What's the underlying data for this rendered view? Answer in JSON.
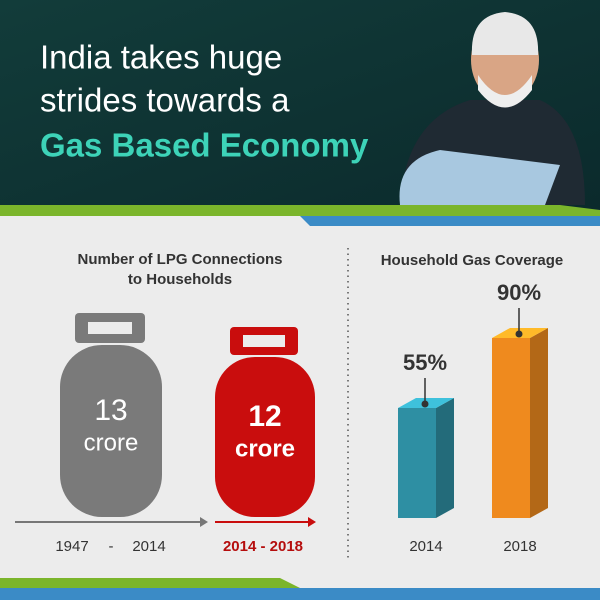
{
  "header": {
    "title_lines": [
      "India takes huge",
      "strides towards a"
    ],
    "highlight": "Gas Based Economy"
  },
  "lpg": {
    "title_lines": [
      "Number of LPG Connections",
      "to Households"
    ],
    "items": [
      {
        "number": "13",
        "unit": "crore",
        "period_start": "1947",
        "period_sep": "-",
        "period_end": "2014"
      },
      {
        "number": "12",
        "unit": "crore",
        "period": "2014 - 2018"
      }
    ]
  },
  "coverage": {
    "title": "Household Gas Coverage",
    "categories": [
      "2014",
      "2018"
    ],
    "values": [
      55,
      90
    ],
    "value_labels": [
      "55%",
      "90%"
    ],
    "colors": [
      "#2e8fa3",
      "#ef8a1e"
    ]
  }
}
